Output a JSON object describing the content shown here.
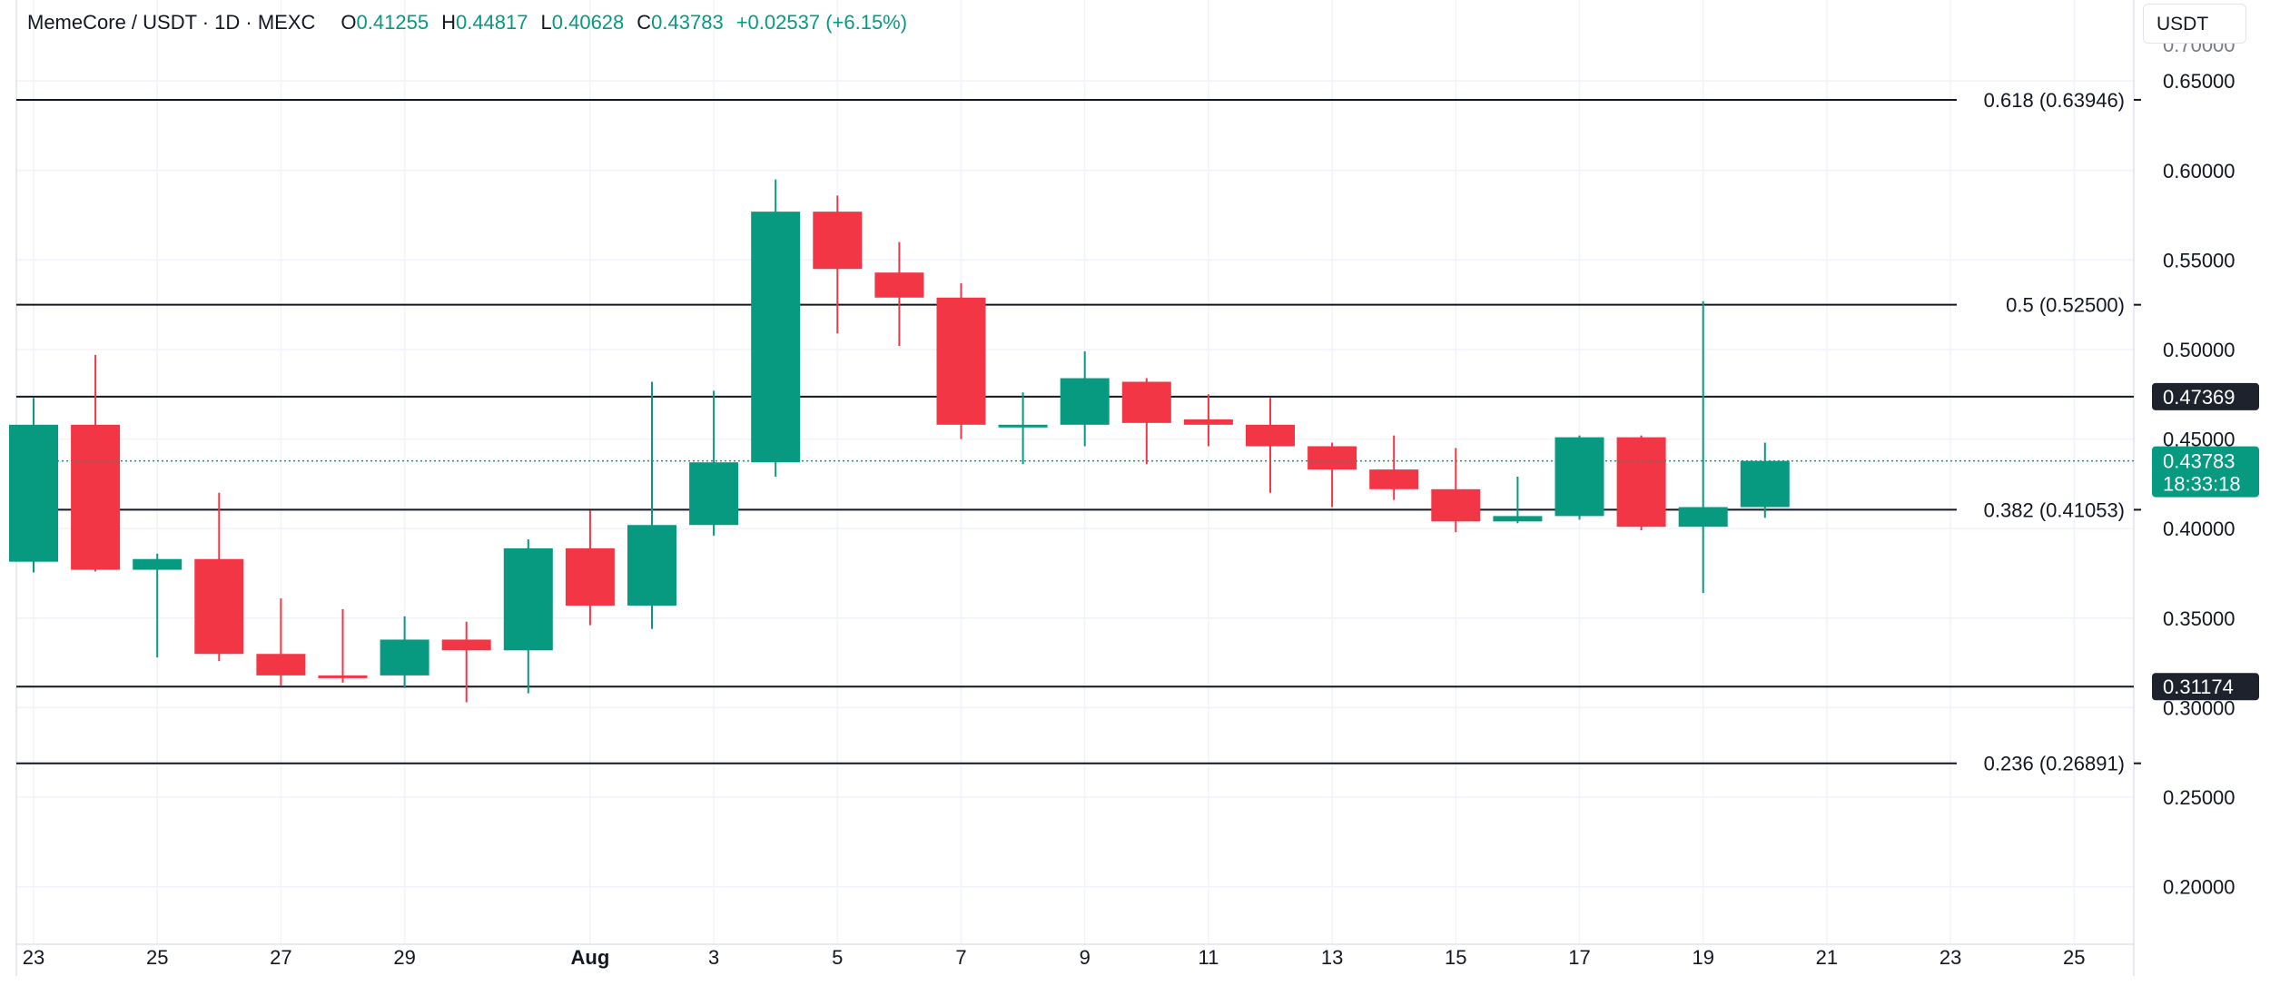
{
  "legend": {
    "symbol": "MemeCore / USDT · 1D · MEXC",
    "open_label": "O",
    "open": "0.41255",
    "high_label": "H",
    "high": "0.44817",
    "low_label": "L",
    "low": "0.40628",
    "close_label": "C",
    "close": "0.43783",
    "change": "+0.02537 (+6.15%)"
  },
  "currency_button": "USDT",
  "colors": {
    "up": "#089981",
    "down": "#f23645",
    "line": "#131722",
    "grid": "#f0f3fa"
  },
  "chart_data": {
    "type": "candlestick",
    "title": "MemeCore / USDT · 1D · MEXC",
    "ylim": [
      0.178,
      0.68
    ],
    "y_ticks": [
      "0.20000",
      "0.25000",
      "0.30000",
      "0.35000",
      "0.40000",
      "0.45000",
      "0.50000",
      "0.55000",
      "0.60000",
      "0.65000"
    ],
    "x_ticks": [
      {
        "day": 0,
        "label": "23"
      },
      {
        "day": 2,
        "label": "25"
      },
      {
        "day": 4,
        "label": "27"
      },
      {
        "day": 6,
        "label": "29"
      },
      {
        "day": 9,
        "label": "Aug",
        "bold": true
      },
      {
        "day": 11,
        "label": "3"
      },
      {
        "day": 13,
        "label": "5"
      },
      {
        "day": 15,
        "label": "7"
      },
      {
        "day": 17,
        "label": "9"
      },
      {
        "day": 19,
        "label": "11"
      },
      {
        "day": 21,
        "label": "13"
      },
      {
        "day": 23,
        "label": "15"
      },
      {
        "day": 25,
        "label": "17"
      },
      {
        "day": 27,
        "label": "19"
      },
      {
        "day": 29,
        "label": "21"
      },
      {
        "day": 31,
        "label": "23"
      },
      {
        "day": 33,
        "label": "25"
      }
    ],
    "candles": [
      {
        "date": "Jul 23",
        "o": 0.3815,
        "h": 0.473,
        "l": 0.3755,
        "c": 0.458
      },
      {
        "date": "Jul 24",
        "o": 0.458,
        "h": 0.497,
        "l": 0.376,
        "c": 0.377
      },
      {
        "date": "Jul 25",
        "o": 0.377,
        "h": 0.386,
        "l": 0.328,
        "c": 0.383
      },
      {
        "date": "Jul 26",
        "o": 0.383,
        "h": 0.42,
        "l": 0.326,
        "c": 0.33
      },
      {
        "date": "Jul 27",
        "o": 0.33,
        "h": 0.361,
        "l": 0.312,
        "c": 0.318
      },
      {
        "date": "Jul 28",
        "o": 0.318,
        "h": 0.355,
        "l": 0.314,
        "c": 0.317
      },
      {
        "date": "Jul 29",
        "o": 0.318,
        "h": 0.351,
        "l": 0.311,
        "c": 0.338
      },
      {
        "date": "Jul 30",
        "o": 0.338,
        "h": 0.348,
        "l": 0.303,
        "c": 0.332
      },
      {
        "date": "Jul 31",
        "o": 0.332,
        "h": 0.394,
        "l": 0.308,
        "c": 0.389
      },
      {
        "date": "Aug 1",
        "o": 0.389,
        "h": 0.41,
        "l": 0.346,
        "c": 0.357
      },
      {
        "date": "Aug 2",
        "o": 0.357,
        "h": 0.482,
        "l": 0.344,
        "c": 0.402
      },
      {
        "date": "Aug 3",
        "o": 0.402,
        "h": 0.477,
        "l": 0.396,
        "c": 0.437
      },
      {
        "date": "Aug 4",
        "o": 0.437,
        "h": 0.595,
        "l": 0.429,
        "c": 0.577
      },
      {
        "date": "Aug 5",
        "o": 0.577,
        "h": 0.586,
        "l": 0.509,
        "c": 0.545
      },
      {
        "date": "Aug 6",
        "o": 0.543,
        "h": 0.56,
        "l": 0.502,
        "c": 0.529
      },
      {
        "date": "Aug 7",
        "o": 0.529,
        "h": 0.537,
        "l": 0.45,
        "c": 0.458
      },
      {
        "date": "Aug 8",
        "o": 0.458,
        "h": 0.476,
        "l": 0.436,
        "c": 0.458
      },
      {
        "date": "Aug 9",
        "o": 0.458,
        "h": 0.499,
        "l": 0.446,
        "c": 0.484
      },
      {
        "date": "Aug 10",
        "o": 0.482,
        "h": 0.484,
        "l": 0.436,
        "c": 0.459
      },
      {
        "date": "Aug 11",
        "o": 0.461,
        "h": 0.475,
        "l": 0.446,
        "c": 0.458
      },
      {
        "date": "Aug 12",
        "o": 0.458,
        "h": 0.473,
        "l": 0.42,
        "c": 0.446
      },
      {
        "date": "Aug 13",
        "o": 0.446,
        "h": 0.448,
        "l": 0.412,
        "c": 0.433
      },
      {
        "date": "Aug 14",
        "o": 0.433,
        "h": 0.452,
        "l": 0.416,
        "c": 0.422
      },
      {
        "date": "Aug 15",
        "o": 0.422,
        "h": 0.445,
        "l": 0.398,
        "c": 0.404
      },
      {
        "date": "Aug 16",
        "o": 0.404,
        "h": 0.429,
        "l": 0.403,
        "c": 0.407
      },
      {
        "date": "Aug 17",
        "o": 0.407,
        "h": 0.452,
        "l": 0.405,
        "c": 0.451
      },
      {
        "date": "Aug 18",
        "o": 0.451,
        "h": 0.452,
        "l": 0.399,
        "c": 0.401
      },
      {
        "date": "Aug 19",
        "o": 0.401,
        "h": 0.527,
        "l": 0.364,
        "c": 0.412
      },
      {
        "date": "Aug 20",
        "o": 0.412,
        "h": 0.448,
        "l": 0.406,
        "c": 0.4378
      }
    ],
    "fib_levels": [
      {
        "value": 0.63946,
        "label": "0.618 (0.63946)"
      },
      {
        "value": 0.525,
        "label": "0.5 (0.52500)"
      },
      {
        "value": 0.41053,
        "label": "0.382 (0.41053)"
      },
      {
        "value": 0.26891,
        "label": "0.236 (0.26891)"
      }
    ],
    "horizontal_lines": [
      {
        "value": 0.47369,
        "label": "0.47369"
      },
      {
        "value": 0.31174,
        "label": "0.31174"
      }
    ],
    "last_price": {
      "value": 0.43783,
      "label": "0.43783",
      "countdown": "18:33:18"
    },
    "axis_clipped_label": "0.70000"
  }
}
